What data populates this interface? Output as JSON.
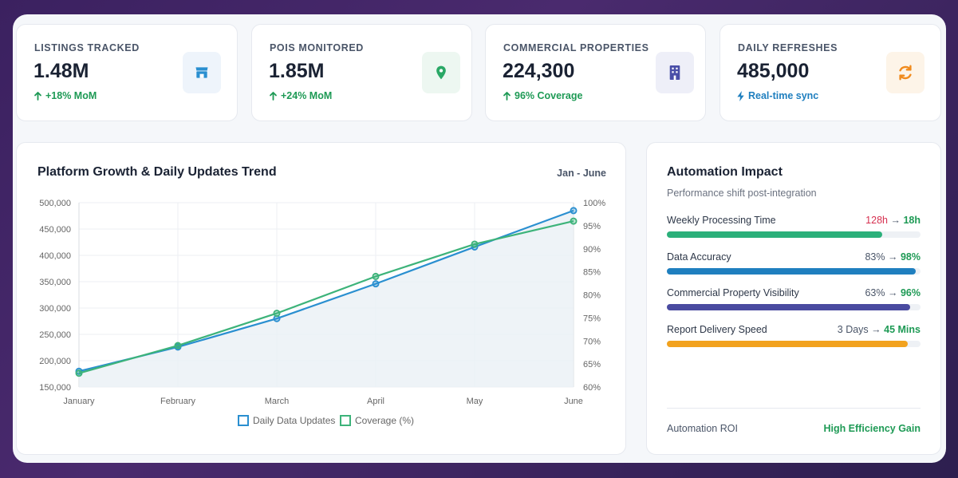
{
  "stats": [
    {
      "label": "LISTINGS TRACKED",
      "value": "1.48M",
      "sub": "+18% MoM",
      "sub_icon": "arrow-up-icon",
      "icon": "store-icon",
      "accent": "#2a8fd0",
      "icon_bg": "#eef4fb",
      "sub_color": "#1e9a55"
    },
    {
      "label": "POIS MONITORED",
      "value": "1.85M",
      "sub": "+24% MoM",
      "sub_icon": "arrow-up-icon",
      "icon": "map-pin-icon",
      "accent": "#2aa866",
      "icon_bg": "#edf7f1",
      "sub_color": "#1e9a55"
    },
    {
      "label": "COMMERCIAL PROPERTIES",
      "value": "224,300",
      "sub": "96% Coverage",
      "sub_icon": "arrow-up-icon",
      "icon": "building-icon",
      "accent": "#4a4fa8",
      "icon_bg": "#eeeff8",
      "sub_color": "#1e9a55"
    },
    {
      "label": "DAILY REFRESHES",
      "value": "485,000",
      "sub": "Real-time sync",
      "sub_icon": "bolt-icon",
      "icon": "refresh-icon",
      "accent": "#f08a1c",
      "icon_bg": "#fdf4e8",
      "sub_color": "#1f7fbf"
    }
  ],
  "growth_chart": {
    "title": "Platform Growth & Daily Updates Trend",
    "range": "Jan - June"
  },
  "chart_data": {
    "type": "line",
    "categories": [
      "January",
      "February",
      "March",
      "April",
      "May",
      "June"
    ],
    "series": [
      {
        "name": "Daily Data Updates",
        "axis": "left",
        "color": "#2a8fd0",
        "values": [
          180000,
          226000,
          280000,
          346000,
          416000,
          485000
        ]
      },
      {
        "name": "Coverage (%)",
        "axis": "right",
        "color": "#3db37a",
        "values": [
          63,
          69,
          76,
          84,
          91,
          96
        ]
      }
    ],
    "y_left": {
      "min": 150000,
      "max": 500000,
      "ticks": [
        "500,000",
        "450,000",
        "400,000",
        "350,000",
        "300,000",
        "250,000",
        "200,000",
        "150,000"
      ]
    },
    "y_right": {
      "min": 60,
      "max": 100,
      "ticks": [
        "100%",
        "95%",
        "90%",
        "85%",
        "80%",
        "75%",
        "70%",
        "65%",
        "60%"
      ]
    },
    "legend": "bottom",
    "grid": true
  },
  "impact": {
    "title": "Automation Impact",
    "subtitle": "Performance shift post-integration",
    "metrics": [
      {
        "label": "Weekly Processing Time",
        "from": "128h",
        "to": "18h",
        "fill": 0.85,
        "color": "#2bb07a",
        "from_red": true
      },
      {
        "label": "Data Accuracy",
        "from": "83%",
        "to": "98%",
        "fill": 0.98,
        "color": "#1f7fbf",
        "from_red": false
      },
      {
        "label": "Commercial Property Visibility",
        "from": "63%",
        "to": "96%",
        "fill": 0.96,
        "color": "#4a4ba0",
        "from_red": false
      },
      {
        "label": "Report Delivery Speed",
        "from": "3 Days",
        "to": "45 Mins",
        "fill": 0.95,
        "color": "#f2a21e",
        "from_red": false
      }
    ],
    "arrow": "→",
    "roi_label": "Automation ROI",
    "roi_value": "High Efficiency Gain"
  }
}
